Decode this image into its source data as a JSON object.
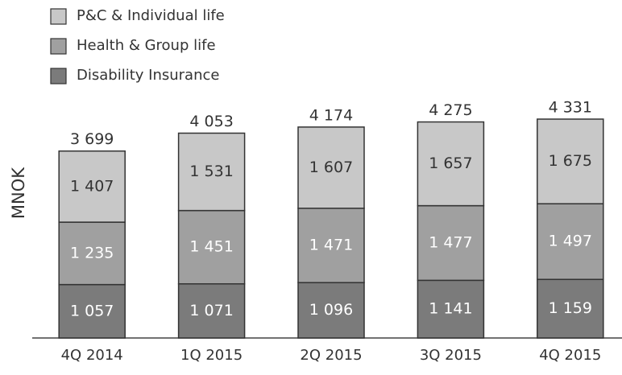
{
  "chart_data": {
    "type": "stacked_bar",
    "y_label": "MNOK",
    "categories": [
      "4Q 2014",
      "1Q 2015",
      "2Q 2015",
      "3Q 2015",
      "4Q 2015"
    ],
    "series": [
      {
        "name": "P&C  & Individual life",
        "color": "#c8c8c8",
        "label_color": "#333333",
        "values": [
          1407,
          1531,
          1607,
          1657,
          1675
        ],
        "value_labels": [
          "1 407",
          "1 531",
          "1 607",
          "1 657",
          "1 675"
        ]
      },
      {
        "name": "Health & Group life",
        "color": "#a0a0a0",
        "label_color": "#ffffff",
        "values": [
          1235,
          1451,
          1471,
          1477,
          1497
        ],
        "value_labels": [
          "1 235",
          "1 451",
          "1 471",
          "1 477",
          "1 497"
        ]
      },
      {
        "name": "Disability Insurance",
        "color": "#7b7b7b",
        "label_color": "#ffffff",
        "values": [
          1057,
          1071,
          1096,
          1141,
          1159
        ],
        "value_labels": [
          "1 057",
          "1 071",
          "1 096",
          "1 141",
          "1 159"
        ]
      }
    ],
    "totals": [
      3699,
      4053,
      4174,
      4275,
      4331
    ],
    "total_labels": [
      "3 699",
      "4 053",
      "4 174",
      "4 275",
      "4 331"
    ],
    "ylim": [
      0,
      5000
    ]
  }
}
